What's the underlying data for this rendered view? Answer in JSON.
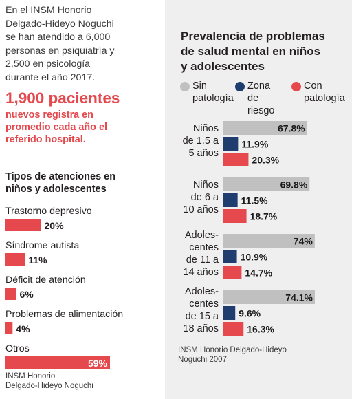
{
  "intro": {
    "lines": [
      "En el INSM Honorio",
      "Delgado-Hideyo Noguchi",
      "se han atendido a 6,000",
      "personas en psiquiatría y",
      "2,500 en psicología",
      "durante el año 2017."
    ]
  },
  "highlight": {
    "figure": "1,900 pacientes",
    "lines": [
      "nuevos registra en",
      "promedio cada año el",
      "referido hospital."
    ]
  },
  "left_title_lines": [
    "Tipos de atenciones en",
    "niños y adolescentes"
  ],
  "left_source_lines": [
    "INSM Honorio",
    "Delgado-Hideyo Noguchi"
  ],
  "right_title_lines": [
    "Prevalencia de problemas",
    "de salud mental en niños",
    "y adolescentes"
  ],
  "legend": [
    {
      "lines": [
        "Sin",
        "patología"
      ],
      "color": "#c0c0c0"
    },
    {
      "lines": [
        "Zona",
        "de riesgo"
      ],
      "color": "#1f3d6e"
    },
    {
      "lines": [
        "Con",
        "patología"
      ],
      "color": "#e5484d"
    }
  ],
  "right_source_lines": [
    "INSM Honorio Delgado-Hideyo",
    "Noguchi 2007"
  ],
  "colors": {
    "red": "#e5484d",
    "navy": "#1f3d6e",
    "gray": "#c0c0c0"
  },
  "chart_data": [
    {
      "type": "bar",
      "orientation": "horizontal",
      "title": "Tipos de atenciones en niños y adolescentes",
      "categories": [
        "Trastorno depresivo",
        "Síndrome autista",
        "Déficit de atención",
        "Problemas de alimentación",
        "Otros"
      ],
      "values": [
        20,
        11,
        6,
        4,
        59
      ],
      "value_labels": [
        "20%",
        "11%",
        "6%",
        "4%",
        "59%"
      ],
      "unit": "%",
      "color": "#e5484d",
      "xlim": [
        0,
        59
      ]
    },
    {
      "type": "bar",
      "orientation": "horizontal",
      "title": "Prevalencia de problemas de salud mental en niños y adolescentes",
      "groups": [
        {
          "label_lines": [
            "Niños",
            "de 1.5 a",
            "5 años"
          ]
        },
        {
          "label_lines": [
            "Niños",
            "de 6 a",
            "10 años"
          ]
        },
        {
          "label_lines": [
            "Adoles-",
            "centes",
            "de 11 a",
            "14 años"
          ]
        },
        {
          "label_lines": [
            "Adoles-",
            "centes",
            "de 15 a",
            "18 años"
          ]
        }
      ],
      "series": [
        {
          "name": "Sin patología",
          "color": "#c0c0c0",
          "values": [
            67.8,
            69.8,
            74,
            74.1
          ],
          "labels": [
            "67.8%",
            "69.8%",
            "74%",
            "74.1%"
          ]
        },
        {
          "name": "Zona de riesgo",
          "color": "#1f3d6e",
          "values": [
            11.9,
            11.5,
            10.9,
            9.6
          ],
          "labels": [
            "11.9%",
            "11.5%",
            "10.9%",
            "9.6%"
          ]
        },
        {
          "name": "Con patología",
          "color": "#e5484d",
          "values": [
            20.3,
            18.7,
            14.7,
            16.3
          ],
          "labels": [
            "20.3%",
            "18.7%",
            "14.7%",
            "16.3%"
          ]
        }
      ],
      "unit": "%",
      "xlim": [
        0,
        74.1
      ]
    }
  ]
}
